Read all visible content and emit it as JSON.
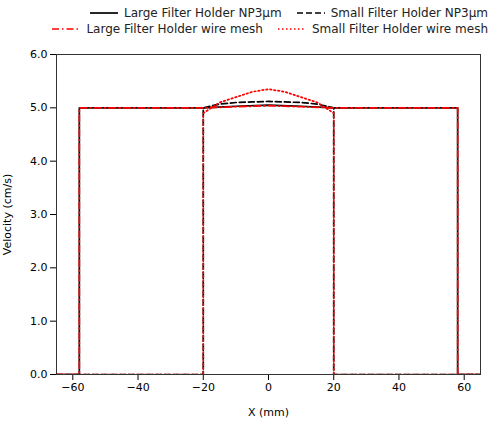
{
  "chart_data": {
    "type": "line",
    "xlabel": "X (mm)",
    "ylabel": "Velocity (cm/s)",
    "xlim": [
      -65,
      65
    ],
    "ylim": [
      0,
      6
    ],
    "xticks": [
      -60,
      -40,
      -20,
      0,
      20,
      40,
      60
    ],
    "yticks": [
      0,
      1,
      2,
      3,
      4,
      5,
      6
    ],
    "grid": false,
    "legend": "upper right",
    "series": [
      {
        "name": "Large Filter Holder NP3μm",
        "color": "black",
        "line_style": "solid",
        "x": [
          -65,
          -58,
          -58,
          -20,
          -10,
          0,
          10,
          20,
          58,
          58,
          65
        ],
        "values": [
          0,
          0,
          5.0,
          5.0,
          5.03,
          5.05,
          5.03,
          5.0,
          5.0,
          0.0,
          0
        ]
      },
      {
        "name": "Small Filter Holder NP3μm",
        "color": "black",
        "line_style": "dashed",
        "x": [
          -65,
          -20,
          -20,
          -15,
          -10,
          -5,
          0,
          5,
          10,
          15,
          20,
          20,
          65
        ],
        "values": [
          0,
          0,
          5.0,
          5.07,
          5.1,
          5.11,
          5.12,
          5.11,
          5.1,
          5.07,
          5.0,
          0,
          0
        ]
      },
      {
        "name": "Large Filter Holder wire mesh",
        "color": "red",
        "line_style": "dashdot",
        "x": [
          -65,
          -58,
          -58,
          -50,
          -30,
          -20,
          -10,
          0,
          10,
          20,
          30,
          50,
          58,
          58,
          65
        ],
        "values": [
          0,
          0,
          5.0,
          5.0,
          5.0,
          5.0,
          5.02,
          5.04,
          5.02,
          5.0,
          5.0,
          5.0,
          5.0,
          0,
          0
        ]
      },
      {
        "name": "Small Filter Holder wire mesh",
        "color": "red",
        "line_style": "dotted",
        "x": [
          -65,
          -20,
          -20,
          -15,
          -10,
          -5,
          0,
          5,
          10,
          15,
          20,
          20,
          65
        ],
        "values": [
          0,
          0,
          4.9,
          5.1,
          5.2,
          5.3,
          5.35,
          5.3,
          5.2,
          5.1,
          4.9,
          0,
          0
        ]
      }
    ]
  }
}
